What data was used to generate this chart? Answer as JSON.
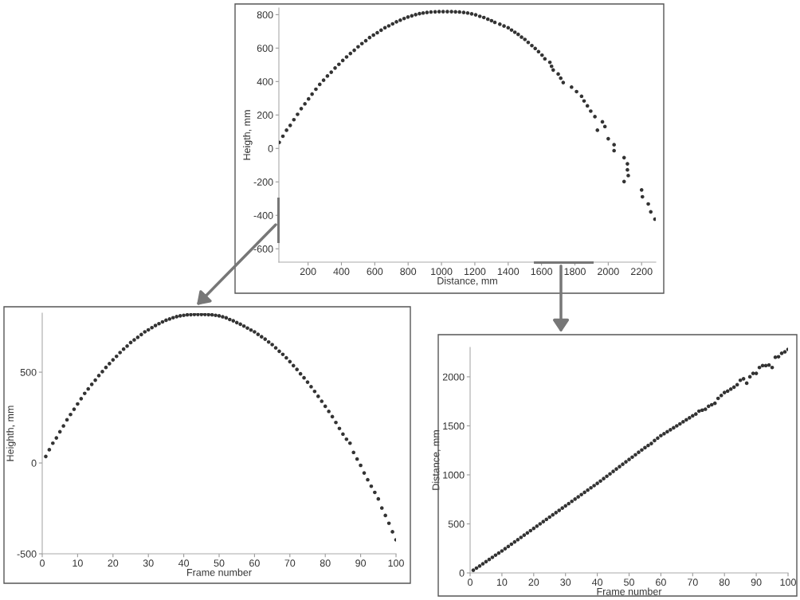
{
  "chart_data": [
    {
      "type": "scatter",
      "xlabel": "Distance, mm",
      "ylabel": "Heigth, mm",
      "marker": "circle",
      "grid": false,
      "x": [
        27,
        49,
        71,
        93,
        115,
        137,
        159,
        181,
        203,
        224,
        247,
        270,
        293,
        316,
        339,
        362,
        385,
        408,
        431,
        454,
        477,
        500,
        523,
        546,
        569,
        592,
        615,
        638,
        661,
        684,
        707,
        730,
        753,
        776,
        799,
        822,
        845,
        868,
        890,
        913,
        937,
        962,
        986,
        1010,
        1035,
        1060,
        1084,
        1108,
        1133,
        1157,
        1181,
        1205,
        1230,
        1254,
        1278,
        1300,
        1320,
        1350,
        1375,
        1400,
        1420,
        1440,
        1460,
        1480,
        1500,
        1520,
        1542,
        1562,
        1582,
        1603,
        1620,
        1650,
        1660,
        1670,
        1700,
        1715,
        1730,
        1780,
        1810,
        1840,
        1855,
        1875,
        1895,
        1920,
        1965,
        1980,
        1935,
        2000,
        2035,
        2035,
        2095,
        2115,
        2115,
        2120,
        2095,
        2200,
        2205,
        2240,
        2255,
        2280
      ],
      "series": [
        {
          "color": "#333333",
          "values": [
            36,
            73,
            109,
            138,
            172,
            204,
            238,
            267,
            296,
            325,
            354,
            383,
            408,
            433,
            456,
            481,
            503,
            526,
            547,
            568,
            587,
            608,
            627,
            644,
            663,
            678,
            692,
            707,
            722,
            733,
            745,
            757,
            767,
            777,
            786,
            793,
            800,
            806,
            810,
            813,
            816,
            817,
            818,
            818,
            818,
            818,
            817,
            816,
            813,
            810,
            805,
            799,
            790,
            783,
            773,
            764,
            754,
            743,
            732,
            722,
            708,
            695,
            682,
            666,
            652,
            634,
            615,
            598,
            579,
            558,
            536,
            515,
            491,
            469,
            445,
            420,
            394,
            367,
            340,
            312,
            284,
            255,
            223,
            190,
            159,
            131,
            109,
            58,
            22,
            -13,
            -55,
            -92,
            -128,
            -162,
            -198,
            -248,
            -289,
            -332,
            -379,
            -423
          ]
        }
      ],
      "xlim": [
        25,
        2285
      ],
      "ylim": [
        -680,
        840
      ],
      "xticks": [
        200,
        400,
        600,
        800,
        1000,
        1200,
        1400,
        1600,
        1800,
        2000,
        2200
      ],
      "yticks": [
        -600,
        -400,
        -200,
        0,
        200,
        400,
        600,
        800
      ]
    },
    {
      "type": "scatter",
      "xlabel": "Frame number",
      "ylabel": "Heighth, mm",
      "marker": "circle",
      "grid": false,
      "x": [
        1,
        2,
        3,
        4,
        5,
        6,
        7,
        8,
        9,
        10,
        11,
        12,
        13,
        14,
        15,
        16,
        17,
        18,
        19,
        20,
        21,
        22,
        23,
        24,
        25,
        26,
        27,
        28,
        29,
        30,
        31,
        32,
        33,
        34,
        35,
        36,
        37,
        38,
        39,
        40,
        41,
        42,
        43,
        44,
        45,
        46,
        47,
        48,
        49,
        50,
        51,
        52,
        53,
        54,
        55,
        56,
        57,
        58,
        59,
        60,
        61,
        62,
        63,
        64,
        65,
        66,
        67,
        68,
        69,
        70,
        71,
        72,
        73,
        74,
        75,
        76,
        77,
        78,
        79,
        80,
        81,
        82,
        83,
        84,
        85,
        86,
        87,
        88,
        89,
        90,
        91,
        92,
        93,
        94,
        95,
        96,
        97,
        98,
        99,
        100
      ],
      "series": [
        {
          "color": "#333333",
          "values": [
            36,
            73,
            109,
            138,
            172,
            204,
            238,
            267,
            296,
            325,
            354,
            383,
            408,
            433,
            456,
            481,
            503,
            526,
            547,
            568,
            587,
            608,
            627,
            644,
            663,
            678,
            692,
            707,
            722,
            733,
            745,
            757,
            767,
            777,
            786,
            793,
            800,
            806,
            810,
            813,
            816,
            817,
            818,
            818,
            818,
            818,
            817,
            816,
            813,
            810,
            805,
            799,
            790,
            783,
            773,
            764,
            754,
            743,
            732,
            722,
            708,
            695,
            682,
            666,
            652,
            634,
            615,
            598,
            579,
            558,
            536,
            515,
            491,
            469,
            445,
            420,
            394,
            367,
            340,
            312,
            284,
            255,
            223,
            190,
            159,
            131,
            109,
            58,
            22,
            -13,
            -55,
            -92,
            -128,
            -162,
            -198,
            -248,
            -289,
            -332,
            -379,
            -423
          ]
        }
      ],
      "xlim": [
        0,
        100
      ],
      "ylim": [
        -500,
        825
      ],
      "xticks": [
        0,
        10,
        20,
        30,
        40,
        50,
        60,
        70,
        80,
        90,
        100
      ],
      "yticks": [
        -500,
        0,
        500
      ]
    },
    {
      "type": "scatter",
      "xlabel": "Frame number",
      "ylabel": "Distance, mm",
      "marker": "circle",
      "grid": false,
      "x": [
        1,
        2,
        3,
        4,
        5,
        6,
        7,
        8,
        9,
        10,
        11,
        12,
        13,
        14,
        15,
        16,
        17,
        18,
        19,
        20,
        21,
        22,
        23,
        24,
        25,
        26,
        27,
        28,
        29,
        30,
        31,
        32,
        33,
        34,
        35,
        36,
        37,
        38,
        39,
        40,
        41,
        42,
        43,
        44,
        45,
        46,
        47,
        48,
        49,
        50,
        51,
        52,
        53,
        54,
        55,
        56,
        57,
        58,
        59,
        60,
        61,
        62,
        63,
        64,
        65,
        66,
        67,
        68,
        69,
        70,
        71,
        72,
        73,
        74,
        75,
        76,
        77,
        78,
        79,
        80,
        81,
        82,
        83,
        84,
        85,
        86,
        87,
        88,
        89,
        90,
        91,
        92,
        93,
        94,
        95,
        96,
        97,
        98,
        99,
        100
      ],
      "series": [
        {
          "color": "#333333",
          "values": [
            27,
            49,
            71,
            93,
            115,
            137,
            159,
            181,
            203,
            224,
            247,
            270,
            293,
            316,
            339,
            362,
            385,
            408,
            431,
            454,
            477,
            500,
            523,
            546,
            569,
            592,
            615,
            638,
            661,
            684,
            707,
            730,
            753,
            776,
            799,
            822,
            845,
            868,
            890,
            913,
            937,
            962,
            986,
            1010,
            1035,
            1060,
            1084,
            1108,
            1133,
            1157,
            1181,
            1205,
            1230,
            1254,
            1278,
            1300,
            1320,
            1350,
            1375,
            1400,
            1420,
            1440,
            1460,
            1480,
            1500,
            1520,
            1542,
            1562,
            1582,
            1603,
            1620,
            1650,
            1660,
            1670,
            1700,
            1715,
            1730,
            1780,
            1810,
            1840,
            1855,
            1875,
            1895,
            1920,
            1965,
            1980,
            1935,
            2000,
            2035,
            2035,
            2095,
            2115,
            2115,
            2120,
            2095,
            2200,
            2205,
            2240,
            2255,
            2280
          ]
        }
      ],
      "xlim": [
        0,
        100
      ],
      "ylim": [
        0,
        2300
      ],
      "xticks": [
        0,
        10,
        20,
        30,
        40,
        50,
        60,
        70,
        80,
        90,
        100
      ],
      "yticks": [
        0,
        500,
        1000,
        1500,
        2000
      ]
    }
  ]
}
